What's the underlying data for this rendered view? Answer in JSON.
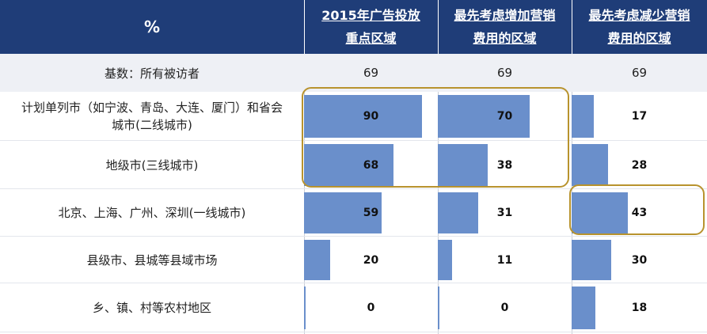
{
  "header": {
    "percent_label": "%",
    "columns": [
      {
        "line1": "2015年广告投放",
        "line2": "重点区域"
      },
      {
        "line1": "最先考虑增加营销",
        "line2": "费用的区域"
      },
      {
        "line1": "最先考虑减少营销",
        "line2": "费用的区域"
      }
    ]
  },
  "base": {
    "label": "基数：所有被访者",
    "values": [
      "69",
      "69",
      "69"
    ]
  },
  "chart_data": {
    "type": "table",
    "columns": [
      "2015年广告投放重点区域",
      "最先考虑增加营销费用的区域",
      "最先考虑减少营销费用的区域"
    ],
    "rows": [
      {
        "label": "计划单列市（如宁波、青岛、大连、厦门）和省会城市(二线城市)",
        "label_lines": [
          "计划单列市（如宁波、青岛、大连、厦门）和省会",
          "城市(二线城市)"
        ],
        "values": [
          90,
          70,
          17
        ]
      },
      {
        "label": "地级市(三线城市)",
        "label_lines": [
          "地级市(三线城市)"
        ],
        "values": [
          68,
          38,
          28
        ]
      },
      {
        "label": "北京、上海、广州、深圳(一线城市)",
        "label_lines": [
          "北京、上海、广州、深圳(一线城市)"
        ],
        "values": [
          59,
          31,
          43
        ]
      },
      {
        "label": "县级市、县城等县域市场",
        "label_lines": [
          "县级市、县城等县域市场"
        ],
        "values": [
          20,
          11,
          30
        ]
      },
      {
        "label": "乡、镇、村等农村地区",
        "label_lines": [
          "乡、镇、村等农村地区"
        ],
        "values": [
          0,
          0,
          18
        ]
      }
    ],
    "scale_max": 100,
    "bar_color": "#6A8FCB",
    "header_color": "#1F3D78",
    "highlight_color": "#B8932E",
    "highlights": [
      {
        "rows": [
          0,
          1
        ],
        "cols": [
          0,
          1
        ]
      },
      {
        "rows": [
          2
        ],
        "cols": [
          2
        ]
      }
    ]
  }
}
